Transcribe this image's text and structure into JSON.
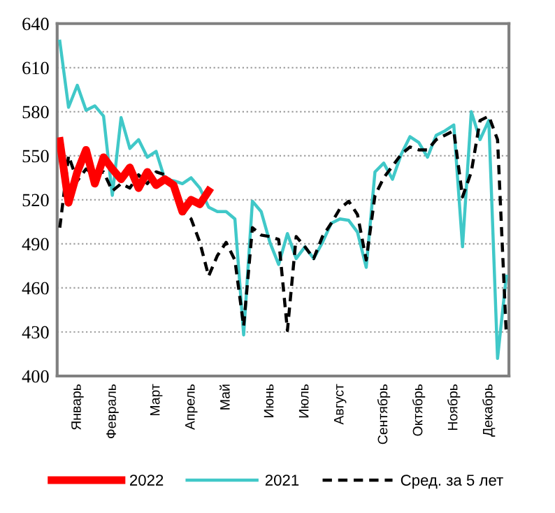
{
  "chart_data": {
    "type": "line",
    "ylim": [
      400,
      640
    ],
    "yticks": [
      400,
      430,
      460,
      490,
      520,
      550,
      580,
      610,
      640
    ],
    "categories": [
      null,
      null,
      "Январь",
      null,
      null,
      null,
      "Февраль",
      null,
      null,
      null,
      null,
      "Март",
      null,
      null,
      null,
      "Апрель",
      null,
      null,
      null,
      "Май",
      null,
      null,
      null,
      null,
      "Июнь",
      null,
      null,
      null,
      "Июль",
      null,
      null,
      null,
      "Август",
      null,
      null,
      null,
      null,
      "Сентябрь",
      null,
      null,
      null,
      "Октябрь",
      null,
      null,
      null,
      "Ноябрь",
      null,
      null,
      null,
      "Декабрь",
      null,
      null
    ],
    "grid": "y",
    "legend": "bottom",
    "marker": "none",
    "series": [
      {
        "name": "2022",
        "color": "#ff0000",
        "line_style": "solid",
        "values": [
          560,
          518,
          539,
          554,
          531,
          549,
          541,
          534,
          542,
          528,
          539,
          530,
          534,
          530,
          512,
          520,
          517,
          526,
          null,
          null,
          null,
          null,
          null,
          null,
          null,
          null,
          null,
          null,
          null,
          null,
          null,
          null,
          null,
          null,
          null,
          null,
          null,
          null,
          null,
          null,
          null,
          null,
          null,
          null,
          null,
          null,
          null,
          null,
          null,
          null,
          null,
          null
        ]
      },
      {
        "name": "2021",
        "color": "#40c8c8",
        "line_style": "solid",
        "values": [
          628,
          583,
          598,
          581,
          584,
          577,
          523,
          576,
          555,
          561,
          549,
          553,
          534,
          533,
          531,
          535,
          528,
          515,
          512,
          512,
          507,
          428,
          519,
          512,
          491,
          476,
          497,
          480,
          488,
          480,
          491,
          504,
          507,
          506,
          498,
          474,
          539,
          545,
          534,
          551,
          563,
          559,
          549,
          564,
          567,
          571,
          488,
          580,
          561,
          574,
          412,
          468
        ]
      },
      {
        "name": "Сред. за 5 лет",
        "color": "#000000",
        "line_style": "dashed",
        "values": [
          501,
          550,
          533,
          541,
          537,
          539,
          526,
          531,
          528,
          537,
          531,
          539,
          537,
          531,
          512,
          507,
          491,
          468,
          482,
          491,
          479,
          434,
          501,
          496,
          495,
          493,
          431,
          495,
          488,
          480,
          495,
          504,
          514,
          519,
          510,
          479,
          523,
          535,
          543,
          551,
          556,
          554,
          554,
          561,
          564,
          567,
          522,
          539,
          574,
          577,
          561,
          428
        ]
      }
    ]
  }
}
